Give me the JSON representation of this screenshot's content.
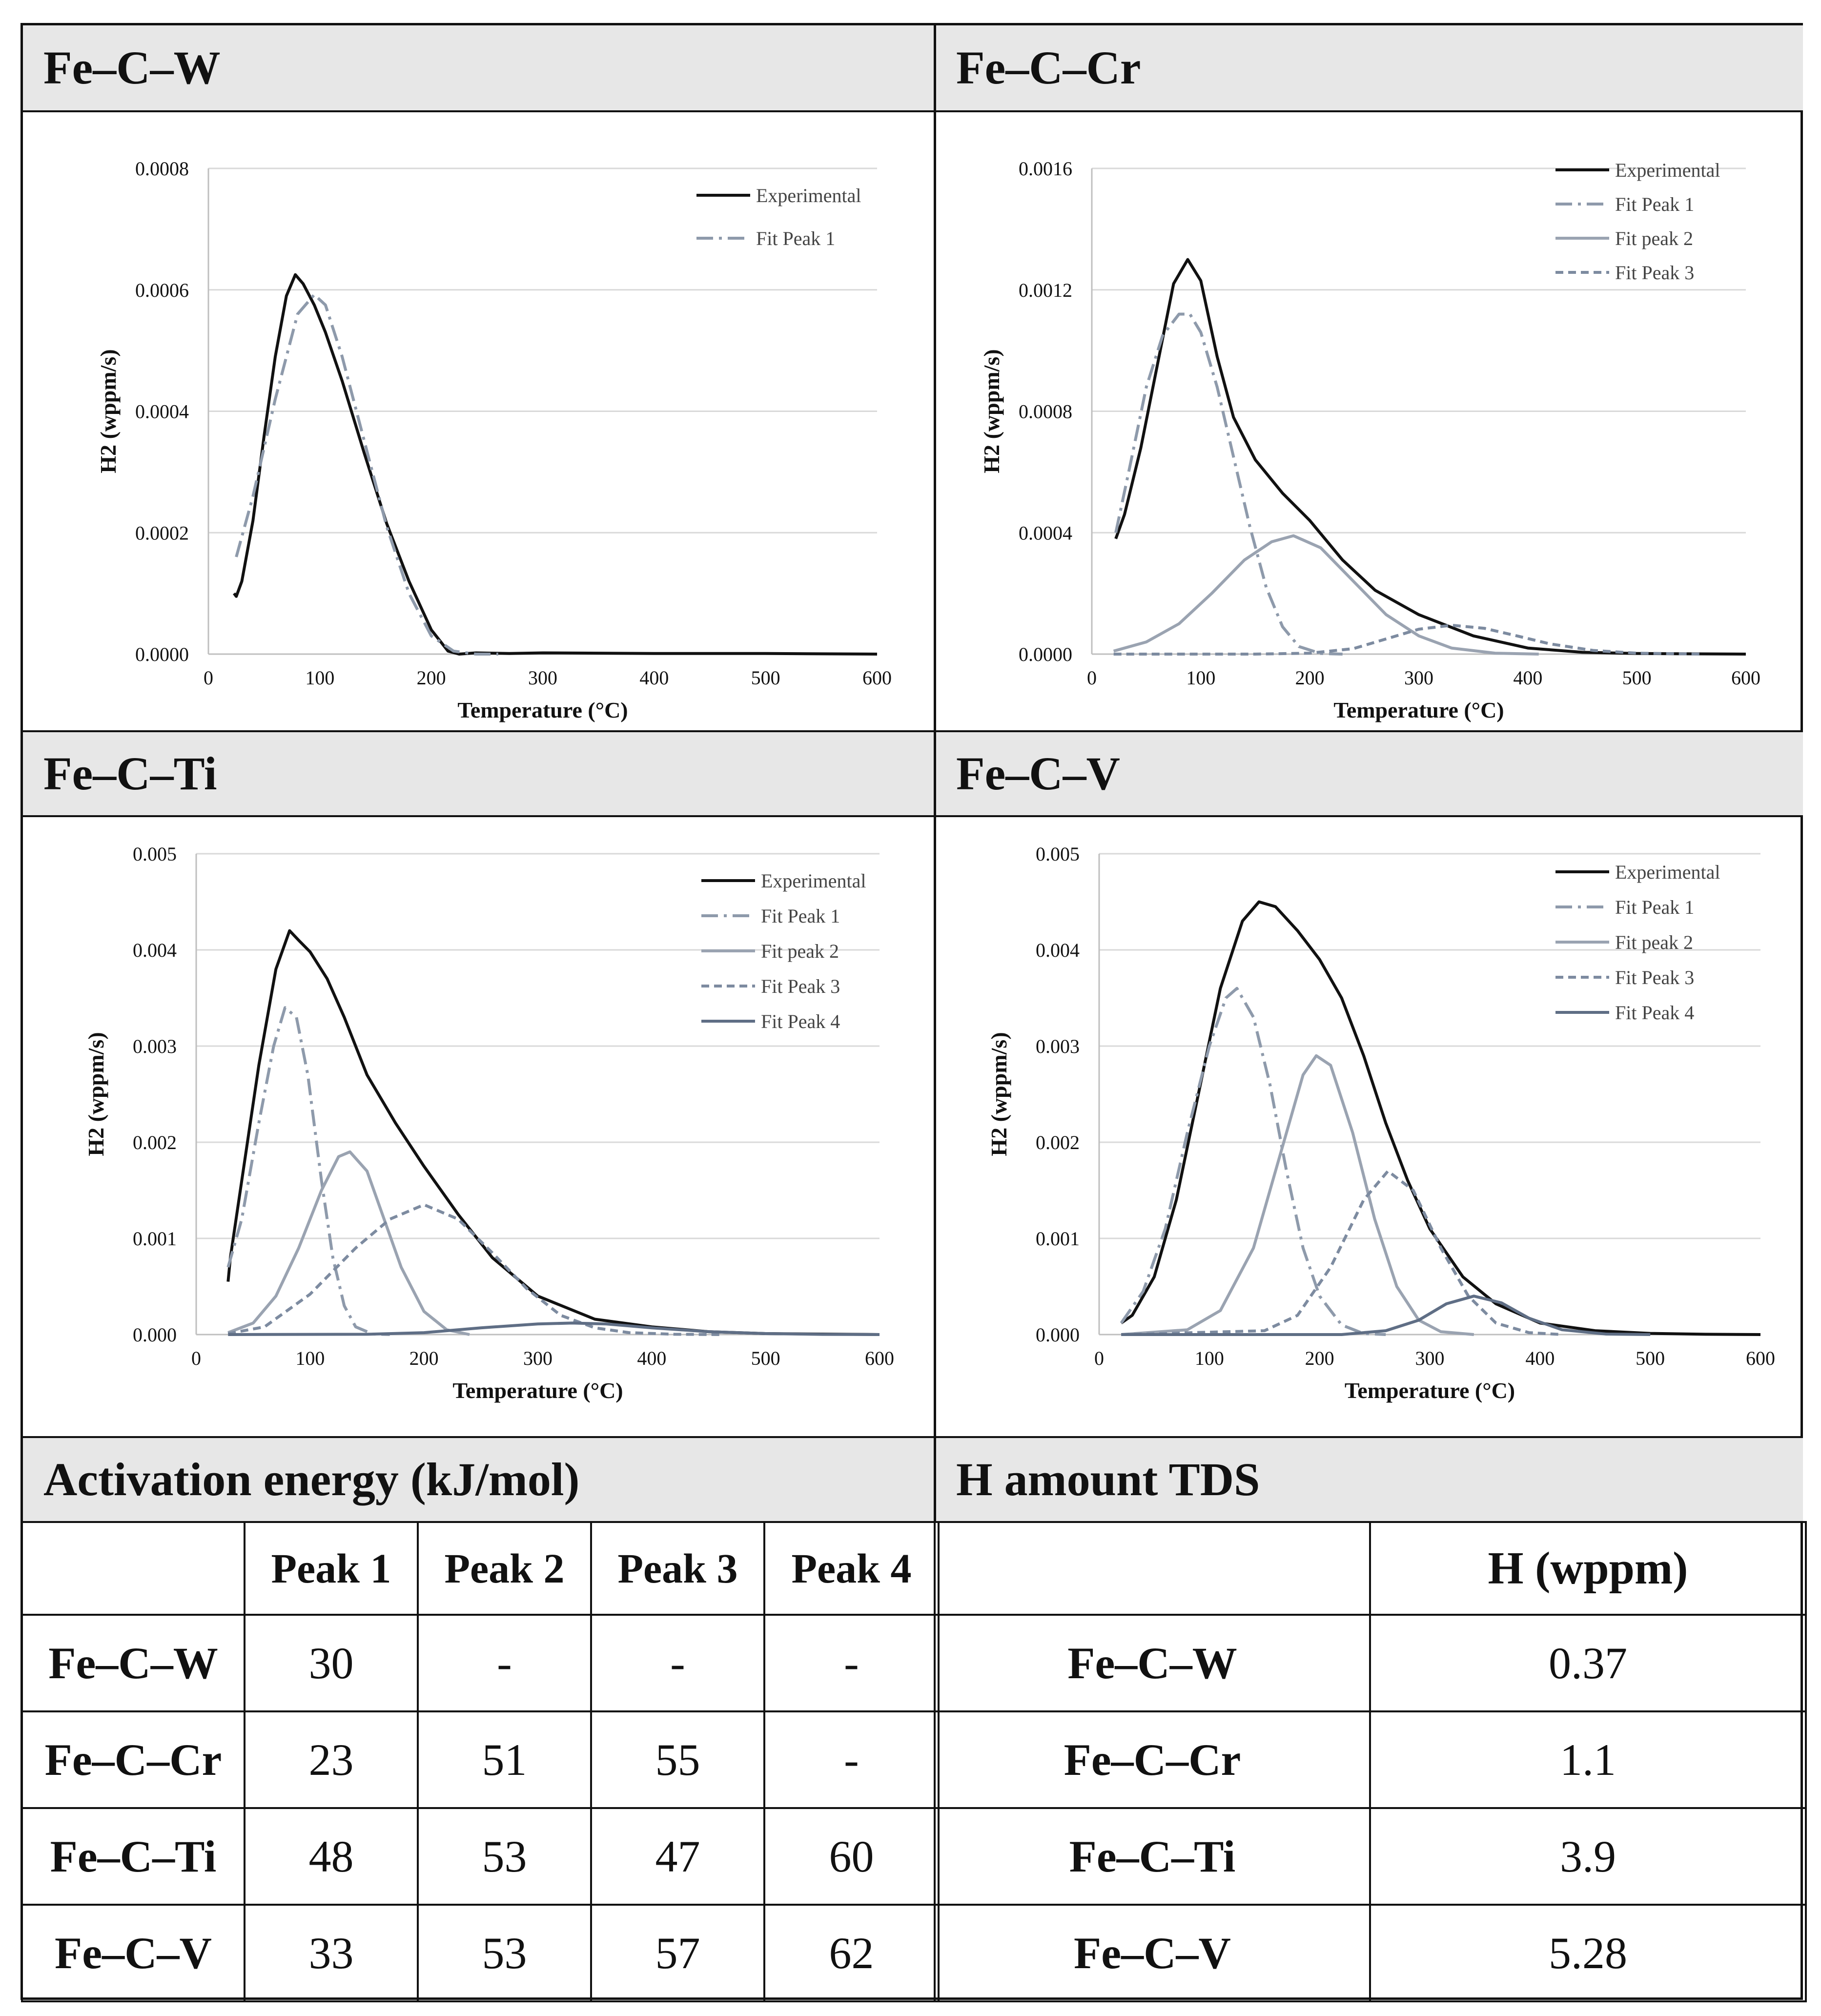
{
  "panels": [
    {
      "title": "Fe–C–W",
      "chart_data": {
        "type": "line",
        "xlabel": "Temperature (°C)",
        "ylabel": "H2 (wppm/s)",
        "xlim": [
          0,
          600
        ],
        "ylim": [
          0,
          0.0008
        ],
        "xticks": [
          "0",
          "100",
          "200",
          "300",
          "400",
          "500",
          "600"
        ],
        "yticks": [
          "0.0000",
          "0.0002",
          "0.0004",
          "0.0006",
          "0.0008"
        ],
        "legend": [
          "Experimental",
          "Fit Peak 1"
        ],
        "series": [
          {
            "name": "Experimental",
            "style": "solid",
            "color": "#111111",
            "x": [
              23,
              25,
              30,
              40,
              50,
              60,
              70,
              78,
              85,
              95,
              105,
              120,
              140,
              160,
              180,
              200,
              215,
              225,
              240,
              270,
              300,
              400,
              500,
              600
            ],
            "y": [
              0.0001,
              9.5e-05,
              0.00012,
              0.00022,
              0.00036,
              0.00049,
              0.00059,
              0.000625,
              0.00061,
              0.000575,
              0.00053,
              0.00045,
              0.00033,
              0.000215,
              0.00012,
              4e-05,
              5e-06,
              0.0,
              2e-06,
              1e-06,
              2e-06,
              1e-06,
              1e-06,
              0.0
            ]
          },
          {
            "name": "Fit Peak 1",
            "style": "dashdot",
            "color": "#8e9aab",
            "x": [
              25,
              40,
              60,
              80,
              95,
              105,
              120,
              140,
              160,
              180,
              200,
              220,
              240,
              260
            ],
            "y": [
              0.00016,
              0.00026,
              0.00042,
              0.00056,
              0.000592,
              0.000575,
              0.00049,
              0.00035,
              0.00021,
              0.0001,
              3e-05,
              5e-06,
              0.0,
              0.0
            ]
          }
        ]
      }
    },
    {
      "title": "Fe–C–Cr",
      "chart_data": {
        "type": "line",
        "xlabel": "Temperature (°C)",
        "ylabel": "H2 (wppm/s)",
        "xlim": [
          0,
          600
        ],
        "ylim": [
          0,
          0.0016
        ],
        "xticks": [
          "0",
          "100",
          "200",
          "300",
          "400",
          "500",
          "600"
        ],
        "yticks": [
          "0.0000",
          "0.0004",
          "0.0008",
          "0.0012",
          "0.0016"
        ],
        "legend": [
          "Experimental",
          "Fit Peak 1",
          "Fit peak 2",
          "Fit Peak 3"
        ],
        "series": [
          {
            "name": "Experimental",
            "style": "solid",
            "color": "#111111",
            "x": [
              22,
              30,
              45,
              60,
              75,
              88,
              100,
              115,
              130,
              150,
              175,
              200,
              230,
              260,
              300,
              350,
              400,
              450,
              500,
              600
            ],
            "y": [
              0.00038,
              0.00046,
              0.00068,
              0.00095,
              0.00122,
              0.0013,
              0.00123,
              0.00098,
              0.00078,
              0.00064,
              0.00053,
              0.00044,
              0.00031,
              0.00021,
              0.00013,
              6e-05,
              2e-05,
              6e-06,
              2e-06,
              0.0
            ]
          },
          {
            "name": "Fit Peak 1",
            "style": "dashdot",
            "color": "#8e9aab",
            "x": [
              22,
              35,
              50,
              65,
              80,
              90,
              100,
              115,
              130,
              145,
              160,
              175,
              190,
              210,
              230
            ],
            "y": [
              0.0004,
              0.00062,
              0.00088,
              0.00105,
              0.00112,
              0.00112,
              0.00106,
              0.00088,
              0.00065,
              0.00042,
              0.00022,
              9e-05,
              2.5e-05,
              2e-06,
              0.0
            ]
          },
          {
            "name": "Fit peak 2",
            "style": "solid",
            "color": "#9aa3b1",
            "x": [
              20,
              50,
              80,
              110,
              140,
              165,
              185,
              210,
              240,
              270,
              300,
              330,
              370,
              410
            ],
            "y": [
              1e-05,
              4e-05,
              0.0001,
              0.0002,
              0.00031,
              0.00037,
              0.00039,
              0.00035,
              0.00024,
              0.00013,
              6e-05,
              2e-05,
              3e-06,
              0.0
            ]
          },
          {
            "name": "Fit Peak 3",
            "style": "dashed",
            "color": "#7d8ba0",
            "x": [
              20,
              150,
              200,
              240,
              270,
              300,
              330,
              360,
              390,
              420,
              460,
              500,
              560
            ],
            "y": [
              0.0,
              0.0,
              3e-06,
              1.8e-05,
              5e-05,
              8.2e-05,
              9.5e-05,
              8.5e-05,
              6e-05,
              3.4e-05,
              1.2e-05,
              3e-06,
              0.0
            ]
          }
        ]
      }
    },
    {
      "title": "Fe–C–Ti",
      "chart_data": {
        "type": "line",
        "xlabel": "Temperature (°C)",
        "ylabel": "H2 (wppm/s)",
        "xlim": [
          0,
          600
        ],
        "ylim": [
          0,
          0.005
        ],
        "xticks": [
          "0",
          "100",
          "200",
          "300",
          "400",
          "500",
          "600"
        ],
        "yticks": [
          "0.000",
          "0.001",
          "0.002",
          "0.003",
          "0.004",
          "0.005"
        ],
        "legend": [
          "Experimental",
          "Fit Peak 1",
          "Fit peak 2",
          "Fit Peak 3",
          "Fit Peak 4"
        ],
        "series": [
          {
            "name": "Experimental",
            "style": "solid",
            "color": "#111111",
            "x": [
              28,
              30,
              40,
              55,
              70,
              82,
              90,
              100,
              115,
              130,
              150,
              175,
              200,
              230,
              260,
              300,
              350,
              400,
              450,
              500,
              600
            ],
            "y": [
              0.00055,
              0.0008,
              0.0016,
              0.0028,
              0.0038,
              0.0042,
              0.0041,
              0.00398,
              0.0037,
              0.0033,
              0.0027,
              0.0022,
              0.00175,
              0.00125,
              0.0008,
              0.0004,
              0.00016,
              8e-05,
              3e-05,
              1e-05,
              0.0
            ]
          },
          {
            "name": "Fit Peak 1",
            "style": "dashdot",
            "color": "#8e9aab",
            "x": [
              28,
              40,
              55,
              68,
              78,
              88,
              98,
              110,
              120,
              130,
              140,
              155,
              170
            ],
            "y": [
              0.0007,
              0.0012,
              0.0022,
              0.003,
              0.0034,
              0.0033,
              0.0027,
              0.0016,
              0.0008,
              0.0003,
              8e-05,
              5e-06,
              0.0
            ]
          },
          {
            "name": "Fit peak 2",
            "style": "solid",
            "color": "#9aa3b1",
            "x": [
              28,
              50,
              70,
              90,
              110,
              125,
              135,
              150,
              165,
              180,
              200,
              220,
              240
            ],
            "y": [
              2e-05,
              0.00012,
              0.0004,
              0.0009,
              0.0015,
              0.00185,
              0.0019,
              0.0017,
              0.0012,
              0.0007,
              0.00024,
              5e-05,
              0.0
            ]
          },
          {
            "name": "Fit Peak 3",
            "style": "dashed",
            "color": "#7d8ba0",
            "x": [
              28,
              60,
              100,
              140,
              170,
              200,
              230,
              260,
              290,
              320,
              350,
              380,
              420,
              460
            ],
            "y": [
              1e-05,
              8e-05,
              0.00042,
              0.0009,
              0.0012,
              0.00135,
              0.0012,
              0.00085,
              0.00048,
              0.0002,
              7e-05,
              2e-05,
              3e-06,
              0.0
            ]
          },
          {
            "name": "Fit Peak 4",
            "style": "solid",
            "color": "#5f6e85",
            "x": [
              28,
              150,
              200,
              250,
              300,
              330,
              360,
              400,
              450,
              500,
              550,
              600
            ],
            "y": [
              0.0,
              3e-06,
              2e-05,
              7e-05,
              0.00011,
              0.00012,
              0.00011,
              7e-05,
              3e-05,
              1e-05,
              2e-06,
              0.0
            ]
          }
        ]
      }
    },
    {
      "title": "Fe–C–V",
      "chart_data": {
        "type": "line",
        "xlabel": "Temperature (°C)",
        "ylabel": "H2 (wppm/s)",
        "xlim": [
          0,
          600
        ],
        "ylim": [
          0,
          0.005
        ],
        "xticks": [
          "0",
          "100",
          "200",
          "300",
          "400",
          "500",
          "600"
        ],
        "yticks": [
          "0.000",
          "0.001",
          "0.002",
          "0.003",
          "0.004",
          "0.005"
        ],
        "legend": [
          "Experimental",
          "Fit Peak 1",
          "Fit peak 2",
          "Fit Peak 3",
          "Fit Peak 4"
        ],
        "series": [
          {
            "name": "Experimental",
            "style": "solid",
            "color": "#111111",
            "x": [
              20,
              30,
              50,
              70,
              90,
              110,
              130,
              145,
              160,
              180,
              200,
              220,
              240,
              260,
              280,
              300,
              330,
              360,
              400,
              450,
              500,
              550,
              600
            ],
            "y": [
              0.00012,
              0.0002,
              0.0006,
              0.0014,
              0.0025,
              0.0036,
              0.0043,
              0.0045,
              0.00445,
              0.0042,
              0.0039,
              0.0035,
              0.0029,
              0.0022,
              0.0016,
              0.0011,
              0.0006,
              0.00032,
              0.00012,
              4e-05,
              1.2e-05,
              3e-06,
              0.0
            ]
          },
          {
            "name": "Fit Peak 1",
            "style": "dashdot",
            "color": "#8e9aab",
            "x": [
              20,
              40,
              60,
              80,
              100,
              115,
              125,
              140,
              155,
              170,
              185,
              200,
              220,
              240,
              260
            ],
            "y": [
              0.00012,
              0.00045,
              0.0011,
              0.0021,
              0.003,
              0.0035,
              0.0036,
              0.0033,
              0.0026,
              0.0017,
              0.0009,
              0.0004,
              0.0001,
              1e-05,
              0.0
            ]
          },
          {
            "name": "Fit peak 2",
            "style": "solid",
            "color": "#9aa3b1",
            "x": [
              20,
              80,
              110,
              140,
              165,
              185,
              197,
              210,
              230,
              250,
              270,
              290,
              310,
              340
            ],
            "y": [
              0.0,
              5e-05,
              0.00025,
              0.0009,
              0.0019,
              0.0027,
              0.0029,
              0.0028,
              0.0021,
              0.0012,
              0.0005,
              0.00015,
              3e-05,
              0.0
            ]
          },
          {
            "name": "Fit Peak 3",
            "style": "dashed",
            "color": "#7d8ba0",
            "x": [
              20,
              150,
              180,
              210,
              240,
              262,
              285,
              310,
              335,
              360,
              390,
              420
            ],
            "y": [
              0.0,
              4e-05,
              0.0002,
              0.0007,
              0.0014,
              0.0017,
              0.0015,
              0.0009,
              0.0004,
              0.00012,
              2e-05,
              0.0
            ]
          },
          {
            "name": "Fit Peak 4",
            "style": "solid",
            "color": "#5f6e85",
            "x": [
              20,
              220,
              260,
              290,
              315,
              340,
              365,
              390,
              420,
              460,
              500
            ],
            "y": [
              0.0,
              0.0,
              4e-05,
              0.00015,
              0.00032,
              0.0004,
              0.00033,
              0.00017,
              5e-05,
              5e-06,
              0.0
            ]
          }
        ]
      }
    }
  ],
  "activation_table": {
    "title": "Activation energy (kJ/mol)",
    "columns": [
      "",
      "Peak 1",
      "Peak 2",
      "Peak 3",
      "Peak 4"
    ],
    "rows": [
      {
        "label": "Fe–C–W",
        "values": [
          "30",
          "-",
          "-",
          "-"
        ]
      },
      {
        "label": "Fe–C–Cr",
        "values": [
          "23",
          "51",
          "55",
          "-"
        ]
      },
      {
        "label": "Fe–C–Ti",
        "values": [
          "48",
          "53",
          "47",
          "60"
        ]
      },
      {
        "label": "Fe–C–V",
        "values": [
          "33",
          "53",
          "57",
          "62"
        ]
      }
    ]
  },
  "h_amount_table": {
    "title": "H amount TDS",
    "column": "H (wppm)",
    "rows": [
      {
        "label": "Fe–C–W",
        "value": "0.37"
      },
      {
        "label": "Fe–C–Cr",
        "value": "1.1"
      },
      {
        "label": "Fe–C–Ti",
        "value": "3.9"
      },
      {
        "label": "Fe–C–V",
        "value": "5.28"
      }
    ]
  }
}
